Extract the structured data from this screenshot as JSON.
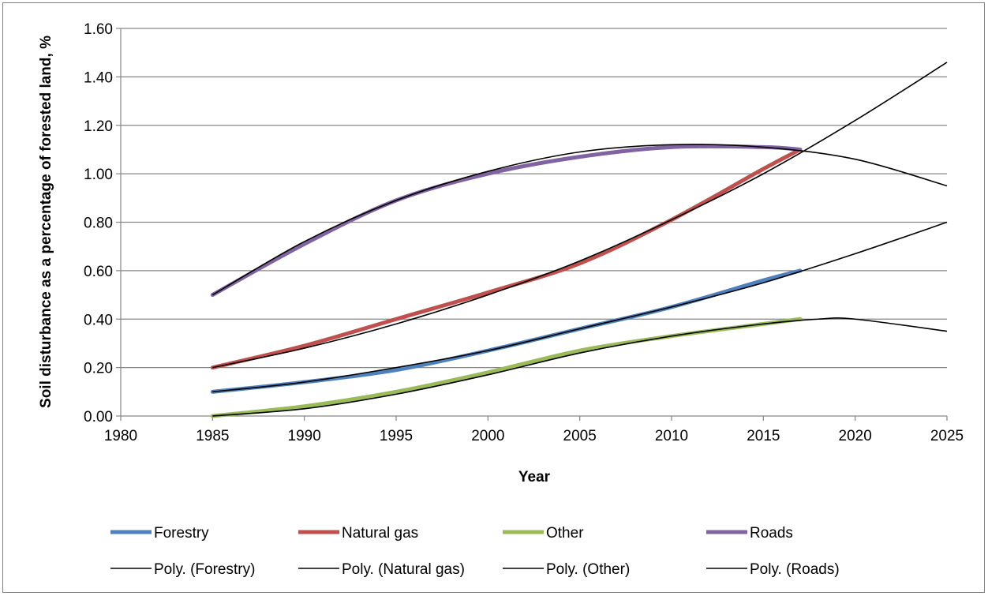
{
  "chart_data": {
    "type": "line",
    "title": "",
    "xlabel": "Year",
    "ylabel": "Soil disturbance as a percentage of forested land, %",
    "xlim": [
      1980,
      2025
    ],
    "ylim": [
      0,
      1.6
    ],
    "x_ticks": [
      1980,
      1985,
      1990,
      1995,
      2000,
      2005,
      2010,
      2015,
      2020,
      2025
    ],
    "y_ticks": [
      "0.00",
      "0.20",
      "0.40",
      "0.60",
      "0.80",
      "1.00",
      "1.20",
      "1.40",
      "1.60"
    ],
    "y_tick_values": [
      0,
      0.2,
      0.4,
      0.6,
      0.8,
      1.0,
      1.2,
      1.4,
      1.6
    ],
    "grid": "horizontal",
    "legend_position": "bottom",
    "series": [
      {
        "name": "Forestry",
        "color": "#4f81bd",
        "x": [
          1985,
          1990,
          1995,
          2000,
          2005,
          2010,
          2015,
          2017
        ],
        "values": [
          0.1,
          0.14,
          0.19,
          0.27,
          0.36,
          0.45,
          0.56,
          0.6
        ]
      },
      {
        "name": "Natural gas",
        "color": "#c0504d",
        "x": [
          1985,
          1990,
          1995,
          2000,
          2005,
          2010,
          2015,
          2017
        ],
        "values": [
          0.2,
          0.29,
          0.4,
          0.51,
          0.63,
          0.81,
          1.02,
          1.1
        ]
      },
      {
        "name": "Other",
        "color": "#9bbb59",
        "x": [
          1985,
          1990,
          1995,
          2000,
          2005,
          2010,
          2015,
          2017
        ],
        "values": [
          0.0,
          0.04,
          0.1,
          0.18,
          0.27,
          0.33,
          0.38,
          0.4
        ]
      },
      {
        "name": "Roads",
        "color": "#8064a2",
        "x": [
          1985,
          1990,
          1995,
          2000,
          2005,
          2010,
          2015,
          2017
        ],
        "values": [
          0.5,
          0.71,
          0.89,
          1.0,
          1.07,
          1.11,
          1.11,
          1.1
        ]
      }
    ],
    "trendlines": [
      {
        "name": "Poly. (Forestry)",
        "color": "#000000",
        "x": [
          1985,
          1990,
          1995,
          2000,
          2005,
          2010,
          2015,
          2020,
          2025
        ],
        "values": [
          0.1,
          0.14,
          0.2,
          0.27,
          0.36,
          0.45,
          0.55,
          0.67,
          0.8
        ]
      },
      {
        "name": "Poly. (Natural gas)",
        "color": "#000000",
        "x": [
          1985,
          1990,
          1995,
          2000,
          2005,
          2010,
          2015,
          2020,
          2025
        ],
        "values": [
          0.2,
          0.28,
          0.38,
          0.5,
          0.64,
          0.81,
          1.0,
          1.22,
          1.46
        ]
      },
      {
        "name": "Poly. (Other)",
        "color": "#000000",
        "x": [
          1985,
          1990,
          1995,
          2000,
          2005,
          2010,
          2015,
          2018,
          2020,
          2025
        ],
        "values": [
          0.0,
          0.03,
          0.09,
          0.17,
          0.26,
          0.33,
          0.38,
          0.4,
          0.4,
          0.35
        ]
      },
      {
        "name": "Poly. (Roads)",
        "color": "#000000",
        "x": [
          1985,
          1990,
          1995,
          2000,
          2005,
          2010,
          2015,
          2020,
          2025
        ],
        "values": [
          0.5,
          0.72,
          0.89,
          1.01,
          1.09,
          1.12,
          1.11,
          1.06,
          0.95
        ]
      }
    ]
  }
}
